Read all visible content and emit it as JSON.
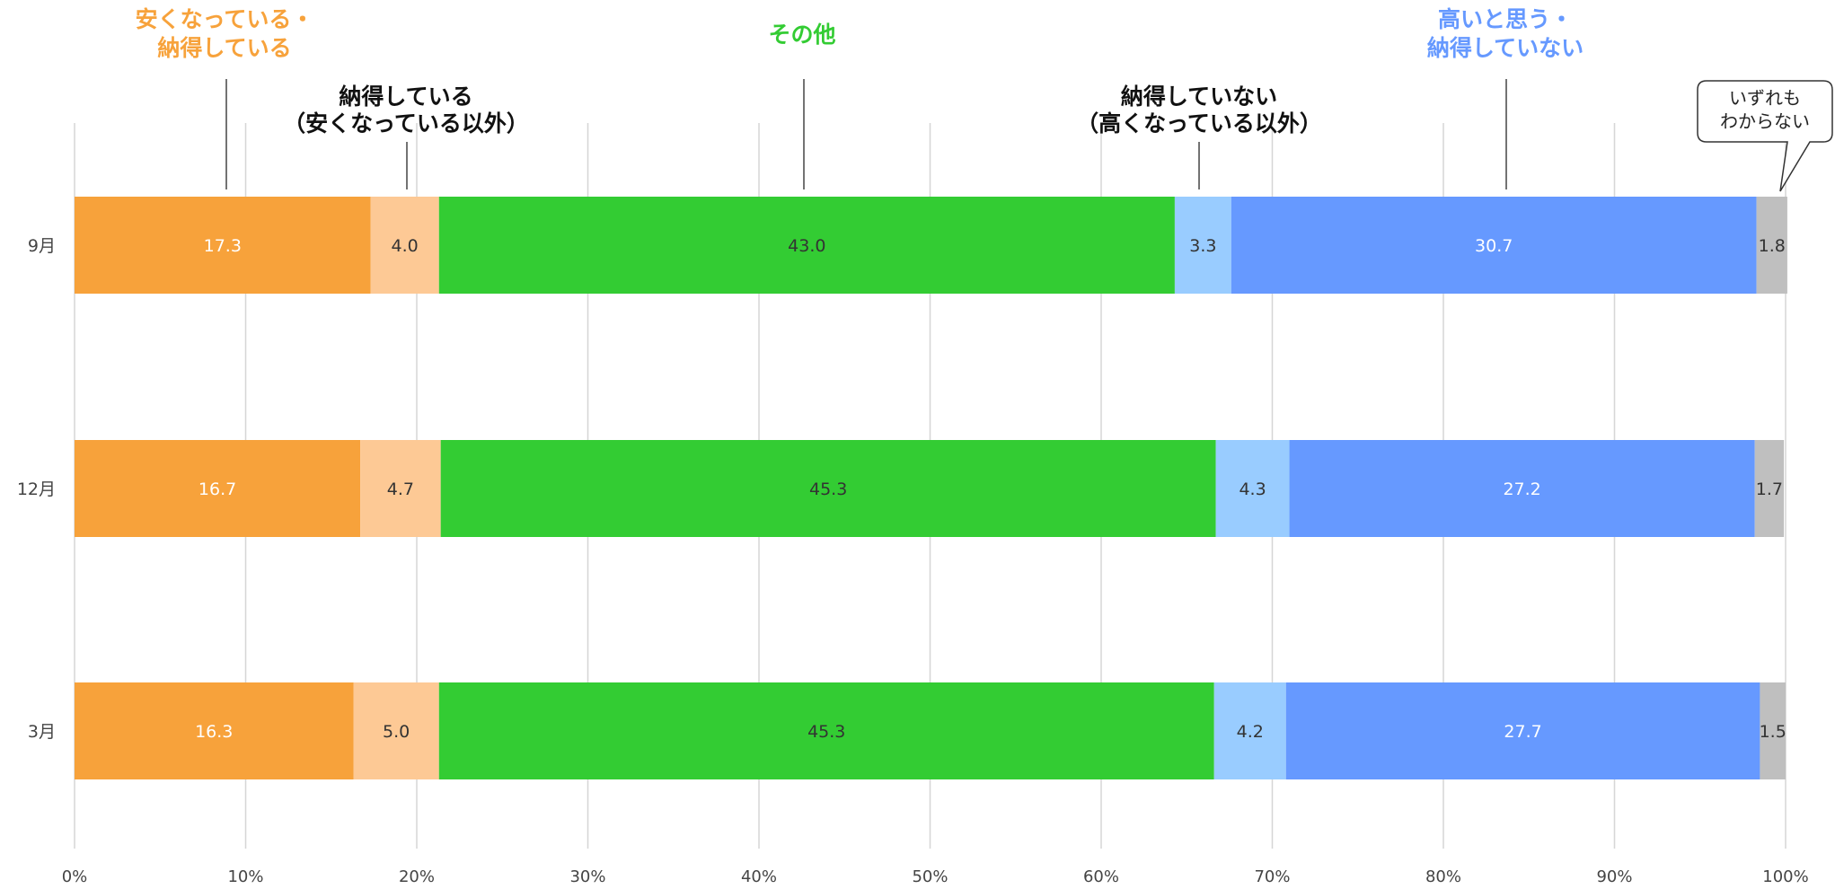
{
  "chart_data": {
    "type": "bar",
    "orientation": "horizontal",
    "stacked": true,
    "xlim": [
      0,
      100
    ],
    "x_ticks": [
      "0%",
      "10%",
      "20%",
      "30%",
      "40%",
      "50%",
      "60%",
      "70%",
      "80%",
      "90%",
      "100%"
    ],
    "grid": true,
    "categories": [
      "9月",
      "12月",
      "3月"
    ],
    "series": [
      {
        "name": "安くなっている・納得している",
        "name_lines": [
          "安くなっている・",
          "納得している"
        ],
        "color": "#F7A23B",
        "label_color": "#ffffff",
        "name_color": "#F7A23B",
        "values": [
          17.3,
          16.7,
          16.3
        ],
        "labels": [
          "17.3",
          "16.7",
          "16.3"
        ]
      },
      {
        "name": "納得している（安くなっている以外）",
        "name_lines": [
          "納得している",
          "（安くなっている以外）"
        ],
        "color": "#FDC995",
        "label_color": "#333333",
        "name_color": "#111111",
        "values": [
          4.0,
          4.7,
          5.0
        ],
        "labels": [
          "4.0",
          "4.7",
          "5.0"
        ]
      },
      {
        "name": "その他",
        "name_lines": [
          "その他"
        ],
        "color": "#33CC33",
        "label_color": "#333333",
        "name_color": "#33CC33",
        "values": [
          43.0,
          45.3,
          45.3
        ],
        "labels": [
          "43.0",
          "45.3",
          "45.3"
        ]
      },
      {
        "name": "納得していない（高くなっている以外）",
        "name_lines": [
          "納得していない",
          "（高くなっている以外）"
        ],
        "color": "#99CCFF",
        "label_color": "#333333",
        "name_color": "#111111",
        "values": [
          3.3,
          4.3,
          4.2
        ],
        "labels": [
          "3.3",
          "4.3",
          "4.2"
        ]
      },
      {
        "name": "高いと思う・納得していない",
        "name_lines": [
          "高いと思う・",
          "納得していない"
        ],
        "color": "#6699FF",
        "label_color": "#ffffff",
        "name_color": "#6699FF",
        "values": [
          30.7,
          27.2,
          27.7
        ],
        "labels": [
          "30.7",
          "27.2",
          "27.7"
        ]
      },
      {
        "name": "いずれもわからない",
        "name_lines": [
          "いずれも",
          "わからない"
        ],
        "color": "#BFBFBF",
        "label_color": "#333333",
        "name_color": "#222222",
        "values": [
          1.8,
          1.7,
          1.5
        ],
        "labels": [
          "1.8",
          "1.7",
          "1.5"
        ]
      }
    ],
    "legend": "annotations-above"
  }
}
